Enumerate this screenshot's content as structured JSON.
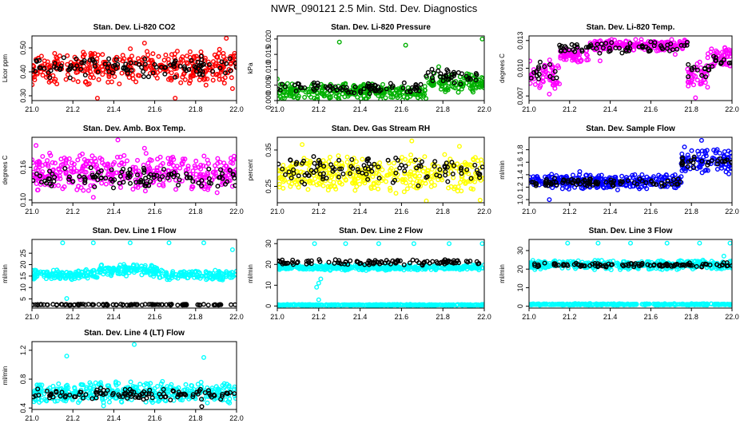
{
  "page_title": "NWR_090121  2.5 Min. Std. Dev. Diagnostics",
  "colors": {
    "black": "#000000",
    "red": "#ff0000",
    "green": "#00b000",
    "magenta": "#ff00ff",
    "yellow": "#ffff00",
    "blue": "#0000ff",
    "cyan": "#00ffff"
  },
  "chart_data": [
    {
      "type": "scatter",
      "title": "Stan. Dev. Li-820 CO2",
      "xlabel": "",
      "ylabel": "Licor ppm",
      "xlim": [
        21.0,
        22.0
      ],
      "ylim": [
        0.28,
        0.55
      ],
      "xticks": [
        "21.0",
        "21.2",
        "21.4",
        "21.6",
        "21.8",
        "22.0"
      ],
      "yticks": [
        "0.30",
        "0.40",
        "0.50"
      ],
      "series": [
        {
          "color": "red",
          "band": [
            0.34,
            0.5
          ],
          "outliers": [
            [
              21.28,
              0.35
            ],
            [
              21.55,
              0.52
            ],
            [
              21.7,
              0.29
            ],
            [
              21.95,
              0.54
            ],
            [
              21.98,
              0.33
            ],
            [
              21.32,
              0.29
            ]
          ]
        },
        {
          "color": "black",
          "band": [
            0.37,
            0.47
          ],
          "outliers": []
        }
      ]
    },
    {
      "type": "scatter",
      "title": "Stan. Dev. Li-820 Pressure",
      "xlabel": "",
      "ylabel": "kPa",
      "xlim": [
        21.0,
        22.0
      ],
      "ylim": [
        0.0,
        0.021
      ],
      "xticks": [
        "21.0",
        "21.2",
        "21.4",
        "21.6",
        "21.8",
        "22.0"
      ],
      "yticks": [
        "0.000",
        "0.005",
        "0.010",
        "0.015",
        "0.020"
      ],
      "series": [
        {
          "color": "green",
          "segments": [
            {
              "x": [
                21.0,
                21.58
              ],
              "band": [
                0.0,
                0.006
              ]
            },
            {
              "x": [
                21.58,
                21.72
              ],
              "band": [
                0.0,
                0.005
              ]
            },
            {
              "x": [
                21.72,
                22.0
              ],
              "band": [
                0.002,
                0.009
              ]
            }
          ],
          "outliers": [
            [
              21.3,
              0.019
            ],
            [
              21.62,
              0.018
            ],
            [
              21.78,
              0.011
            ],
            [
              21.99,
              0.02
            ],
            [
              21.0,
              0.007
            ]
          ]
        },
        {
          "color": "black",
          "segments": [
            {
              "x": [
                21.0,
                21.7
              ],
              "band": [
                0.002,
                0.006
              ]
            },
            {
              "x": [
                21.7,
                22.0
              ],
              "band": [
                0.005,
                0.011
              ]
            }
          ],
          "outliers": []
        }
      ]
    },
    {
      "type": "scatter",
      "title": "Stan. Dev. Li-820 Temp.",
      "xlabel": "",
      "ylabel": "degrees C",
      "xlim": [
        21.0,
        22.0
      ],
      "ylim": [
        0.0065,
        0.0135
      ],
      "xticks": [
        "21.0",
        "21.2",
        "21.4",
        "21.6",
        "21.8",
        "22.0"
      ],
      "yticks": [
        "0.007",
        "0.010",
        "0.013"
      ],
      "series": [
        {
          "color": "magenta",
          "segments": [
            {
              "x": [
                21.0,
                21.15
              ],
              "band": [
                0.0075,
                0.0112
              ]
            },
            {
              "x": [
                21.15,
                21.3
              ],
              "band": [
                0.0105,
                0.0122
              ]
            },
            {
              "x": [
                21.3,
                21.78
              ],
              "band": [
                0.0118,
                0.0132
              ]
            },
            {
              "x": [
                21.78,
                21.88
              ],
              "band": [
                0.0078,
                0.0108
              ]
            },
            {
              "x": [
                21.88,
                22.0
              ],
              "band": [
                0.01,
                0.0125
              ]
            }
          ],
          "outliers": [
            [
              21.1,
              0.0072
            ],
            [
              21.82,
              0.0068
            ],
            [
              21.35,
              0.0108
            ],
            [
              21.72,
              0.0115
            ]
          ]
        },
        {
          "color": "black",
          "segments": [
            {
              "x": [
                21.0,
                21.15
              ],
              "band": [
                0.0085,
                0.011
              ]
            },
            {
              "x": [
                21.15,
                21.78
              ],
              "band": [
                0.0115,
                0.013
              ]
            },
            {
              "x": [
                21.78,
                21.9
              ],
              "band": [
                0.0085,
                0.011
              ]
            },
            {
              "x": [
                21.9,
                22.0
              ],
              "band": [
                0.01,
                0.0118
              ]
            }
          ],
          "outliers": []
        }
      ]
    },
    {
      "type": "scatter",
      "title": "Stan. Dev. Amb. Box Temp.",
      "xlabel": "",
      "ylabel": "degrees C",
      "xlim": [
        21.0,
        22.0
      ],
      "ylim": [
        0.095,
        0.215
      ],
      "xticks": [
        "21.0",
        "21.2",
        "21.4",
        "21.6",
        "21.8",
        "22.0"
      ],
      "yticks": [
        "0.10",
        "0.16"
      ],
      "series": [
        {
          "color": "magenta",
          "band": [
            0.11,
            0.19
          ],
          "outliers": [
            [
              21.42,
              0.21
            ],
            [
              21.02,
              0.2
            ],
            [
              21.55,
              0.195
            ],
            [
              21.3,
              0.105
            ]
          ]
        },
        {
          "color": "black",
          "band": [
            0.12,
            0.16
          ],
          "outliers": []
        }
      ]
    },
    {
      "type": "scatter",
      "title": "Stan. Dev. Gas Stream RH",
      "xlabel": "",
      "ylabel": "percent",
      "xlim": [
        21.0,
        22.0
      ],
      "ylim": [
        0.205,
        0.385
      ],
      "xticks": [
        "21.0",
        "21.2",
        "21.4",
        "21.6",
        "21.8",
        "22.0"
      ],
      "yticks": [
        "0.25",
        "0.35"
      ],
      "series": [
        {
          "color": "yellow",
          "band": [
            0.23,
            0.34
          ],
          "outliers": [
            [
              21.72,
              0.21
            ],
            [
              21.98,
              0.212
            ],
            [
              21.65,
              0.375
            ],
            [
              21.12,
              0.365
            ],
            [
              21.88,
              0.36
            ]
          ]
        },
        {
          "color": "black",
          "band": [
            0.25,
            0.34
          ],
          "outliers": []
        }
      ]
    },
    {
      "type": "scatter",
      "title": "Stan. Dev. Sample Flow",
      "xlabel": "",
      "ylabel": "ml/min",
      "xlim": [
        21.0,
        22.0
      ],
      "ylim": [
        0.95,
        2.0
      ],
      "xticks": [
        "21.0",
        "21.2",
        "21.4",
        "21.6",
        "21.8",
        "22.0"
      ],
      "yticks": [
        "1.0",
        "1.2",
        "1.4",
        "1.6",
        "1.8"
      ],
      "series": [
        {
          "color": "blue",
          "segments": [
            {
              "x": [
                21.0,
                21.75
              ],
              "band": [
                1.15,
                1.42
              ]
            },
            {
              "x": [
                21.75,
                22.0
              ],
              "band": [
                1.4,
                1.85
              ]
            }
          ],
          "outliers": [
            [
              21.85,
              1.95
            ],
            [
              21.1,
              1.0
            ],
            [
              21.25,
              1.45
            ]
          ]
        },
        {
          "color": "black",
          "segments": [
            {
              "x": [
                21.0,
                21.75
              ],
              "band": [
                1.2,
                1.35
              ]
            },
            {
              "x": [
                21.75,
                22.0
              ],
              "band": [
                1.5,
                1.7
              ]
            }
          ],
          "outliers": []
        }
      ]
    },
    {
      "type": "scatter",
      "title": "Stan. Dev. Line 1 Flow",
      "xlabel": "",
      "ylabel": "ml/min",
      "xlim": [
        21.0,
        22.0
      ],
      "ylim": [
        1.0,
        31.0
      ],
      "xticks": [
        "21.0",
        "21.2",
        "21.4",
        "21.6",
        "21.8",
        "22.0"
      ],
      "yticks": [
        "5",
        "10",
        "15",
        "20",
        "25"
      ],
      "series": [
        {
          "color": "cyan",
          "band": [
            13,
            18
          ],
          "bump": {
            "x": [
              21.32,
              21.62
            ],
            "dy": 2.5
          },
          "outliers": [
            [
              21.15,
              29.5
            ],
            [
              21.3,
              29.5
            ],
            [
              21.48,
              29.5
            ],
            [
              21.67,
              29.5
            ],
            [
              21.84,
              29.5
            ],
            [
              21.98,
              26.5
            ],
            [
              21.17,
              5.2
            ]
          ]
        },
        {
          "color": "black",
          "band": [
            2.2,
            2.8
          ],
          "outliers": []
        }
      ]
    },
    {
      "type": "scatter",
      "title": "Stan. Dev. Line 2 Flow",
      "xlabel": "",
      "ylabel": "ml/min",
      "xlim": [
        21.0,
        22.0
      ],
      "ylim": [
        -1.0,
        32.0
      ],
      "xticks": [
        "21.0",
        "21.2",
        "21.4",
        "21.6",
        "21.8",
        "22.0"
      ],
      "yticks": [
        "0",
        "10",
        "20",
        "30"
      ],
      "series": [
        {
          "color": "cyan",
          "band": [
            17,
            20
          ],
          "outliers": [
            [
              21.18,
              30
            ],
            [
              21.33,
              30
            ],
            [
              21.49,
              30
            ],
            [
              21.66,
              30
            ],
            [
              21.83,
              30
            ],
            [
              21.99,
              30
            ],
            [
              21.19,
              9
            ],
            [
              21.2,
              11
            ],
            [
              21.21,
              13
            ],
            [
              21.2,
              3
            ]
          ]
        },
        {
          "color": "cyan",
          "band": [
            0.2,
            0.8
          ],
          "outliers": []
        },
        {
          "color": "black",
          "band": [
            19.5,
            22.5
          ],
          "outliers": []
        }
      ]
    },
    {
      "type": "scatter",
      "title": "Stan. Dev. Line 3 Flow",
      "xlabel": "",
      "ylabel": "ml/min",
      "xlim": [
        21.0,
        22.0
      ],
      "ylim": [
        -1.0,
        36.0
      ],
      "xticks": [
        "21.0",
        "21.2",
        "21.4",
        "21.6",
        "21.8",
        "22.0"
      ],
      "yticks": [
        "0",
        "10",
        "20",
        "30"
      ],
      "series": [
        {
          "color": "cyan",
          "band": [
            19.5,
            25
          ],
          "outliers": [
            [
              21.19,
              34
            ],
            [
              21.34,
              34
            ],
            [
              21.5,
              34
            ],
            [
              21.68,
              34
            ],
            [
              21.84,
              34
            ],
            [
              21.99,
              34
            ],
            [
              21.96,
              27
            ]
          ]
        },
        {
          "color": "cyan",
          "band": [
            0.5,
            1.5
          ],
          "outliers": []
        },
        {
          "color": "black",
          "band": [
            21,
            23.5
          ],
          "outliers": []
        }
      ]
    },
    {
      "type": "scatter",
      "title": "Stan. Dev. Line 4 (LT) Flow",
      "xlabel": "",
      "ylabel": "ml/min",
      "xlim": [
        21.0,
        22.0
      ],
      "ylim": [
        0.38,
        1.32
      ],
      "xticks": [
        "21.0",
        "21.2",
        "21.4",
        "21.6",
        "21.8",
        "22.0"
      ],
      "yticks": [
        "0.4",
        "0.8",
        "1.2"
      ],
      "series": [
        {
          "color": "cyan",
          "band": [
            0.45,
            0.78
          ],
          "outliers": [
            [
              21.17,
              1.12
            ],
            [
              21.5,
              1.28
            ],
            [
              21.84,
              1.1
            ],
            [
              21.35,
              0.43
            ]
          ]
        },
        {
          "color": "black",
          "band": [
            0.5,
            0.68
          ],
          "outliers": [
            [
              21.83,
              0.42
            ]
          ]
        }
      ]
    }
  ]
}
